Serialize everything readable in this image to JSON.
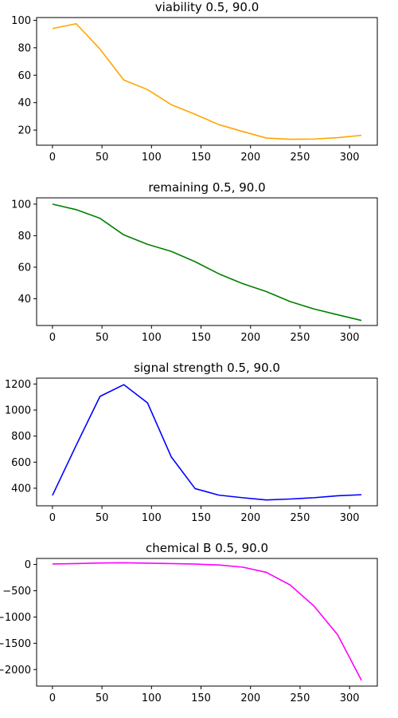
{
  "chart_data": [
    {
      "type": "line",
      "title": "viability 0.5, 90.0",
      "color": "#ffa500",
      "xlim": [
        -16,
        328
      ],
      "ylim": [
        9,
        102
      ],
      "xticks": [
        0,
        50,
        100,
        150,
        200,
        250,
        300
      ],
      "yticks": [
        20,
        40,
        60,
        80,
        100
      ],
      "x": [
        0,
        24,
        48,
        72,
        96,
        120,
        144,
        168,
        192,
        216,
        240,
        264,
        288,
        312
      ],
      "y": [
        94,
        97.5,
        79,
        56.5,
        49.5,
        38.5,
        31.5,
        24,
        19,
        14.2,
        13.3,
        13.5,
        14.5,
        16.2
      ]
    },
    {
      "type": "line",
      "title": "remaining 0.5, 90.0",
      "color": "#008000",
      "xlim": [
        -16,
        328
      ],
      "ylim": [
        23,
        104
      ],
      "xticks": [
        0,
        50,
        100,
        150,
        200,
        250,
        300
      ],
      "yticks": [
        40,
        60,
        80,
        100
      ],
      "x": [
        0,
        24,
        48,
        72,
        96,
        120,
        144,
        168,
        192,
        216,
        240,
        264,
        288,
        312
      ],
      "y": [
        100,
        96.5,
        91,
        80.5,
        74.5,
        70,
        63.5,
        55.8,
        49.6,
        44.5,
        38.2,
        33.5,
        29.8,
        26.2
      ]
    },
    {
      "type": "line",
      "title": "signal strength 0.5, 90.0",
      "color": "#0000ff",
      "xlim": [
        -16,
        328
      ],
      "ylim": [
        265,
        1245
      ],
      "xticks": [
        0,
        50,
        100,
        150,
        200,
        250,
        300
      ],
      "yticks": [
        400,
        600,
        800,
        1000,
        1200
      ],
      "x": [
        0,
        24,
        48,
        72,
        96,
        120,
        144,
        168,
        192,
        216,
        240,
        264,
        288,
        312
      ],
      "y": [
        345,
        730,
        1105,
        1195,
        1055,
        640,
        397,
        347,
        327,
        310,
        317,
        327,
        342,
        350
      ]
    },
    {
      "type": "line",
      "title": "chemical B 0.5, 90.0",
      "color": "#ff00ff",
      "xlim": [
        -16,
        328
      ],
      "ylim": [
        -2315,
        115
      ],
      "xticks": [
        0,
        50,
        100,
        150,
        200,
        250,
        300
      ],
      "yticks": [
        0,
        -500,
        -1000,
        -1500,
        -2000
      ],
      "x": [
        0,
        24,
        48,
        72,
        96,
        120,
        144,
        168,
        192,
        216,
        240,
        264,
        288,
        312
      ],
      "y": [
        10,
        18,
        28,
        32,
        25,
        18,
        8,
        -10,
        -50,
        -150,
        -390,
        -790,
        -1340,
        -2205
      ]
    }
  ]
}
